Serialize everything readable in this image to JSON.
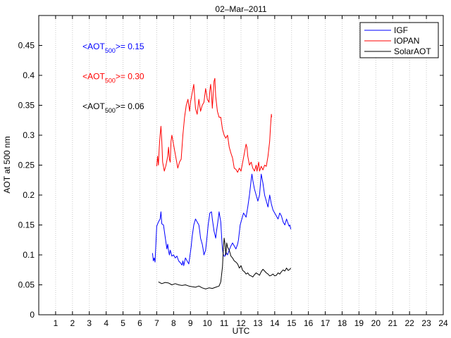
{
  "chart_data": {
    "type": "line",
    "title": "02–Mar–2011",
    "xlabel": "UTC",
    "ylabel": "AOT at 500 nm",
    "xlim": [
      0,
      24
    ],
    "ylim": [
      0,
      0.5
    ],
    "xticks": [
      1,
      2,
      3,
      4,
      5,
      6,
      7,
      8,
      9,
      10,
      11,
      12,
      13,
      14,
      15,
      16,
      17,
      18,
      19,
      20,
      21,
      22,
      23,
      24
    ],
    "yticks": [
      0,
      0.05,
      0.1,
      0.15,
      0.2,
      0.25,
      0.3,
      0.35,
      0.4,
      0.45
    ],
    "ytick_labels": [
      "0",
      "0.05",
      "0.1",
      "0.15",
      "0.2",
      "0.25",
      "0.3",
      "0.35",
      "0.4",
      "0.45"
    ],
    "grid": "x-only dotted",
    "legend_position": "top-right",
    "annotations": [
      {
        "prefix": "<AOT",
        "sub": "500",
        "suffix": ">= 0.15",
        "color": "#0000ff",
        "x": 2.6,
        "y": 0.448
      },
      {
        "prefix": "<AOT",
        "sub": "500",
        "suffix": ">= 0.30",
        "color": "#ff0000",
        "x": 2.6,
        "y": 0.398
      },
      {
        "prefix": "<AOT",
        "sub": "500",
        "suffix": ">= 0.06",
        "color": "#000000",
        "x": 2.6,
        "y": 0.348
      }
    ],
    "series": [
      {
        "name": "IGF",
        "color": "#0000ff",
        "points": [
          [
            6.75,
            0.103
          ],
          [
            6.8,
            0.09
          ],
          [
            6.85,
            0.095
          ],
          [
            6.9,
            0.088
          ],
          [
            7.0,
            0.148
          ],
          [
            7.1,
            0.155
          ],
          [
            7.2,
            0.16
          ],
          [
            7.25,
            0.172
          ],
          [
            7.3,
            0.152
          ],
          [
            7.4,
            0.15
          ],
          [
            7.45,
            0.14
          ],
          [
            7.5,
            0.13
          ],
          [
            7.55,
            0.12
          ],
          [
            7.6,
            0.11
          ],
          [
            7.65,
            0.118
          ],
          [
            7.7,
            0.107
          ],
          [
            7.75,
            0.1
          ],
          [
            7.8,
            0.108
          ],
          [
            7.9,
            0.098
          ],
          [
            8.0,
            0.1
          ],
          [
            8.1,
            0.095
          ],
          [
            8.2,
            0.098
          ],
          [
            8.3,
            0.09
          ],
          [
            8.4,
            0.087
          ],
          [
            8.5,
            0.083
          ],
          [
            8.55,
            0.09
          ],
          [
            8.6,
            0.082
          ],
          [
            8.7,
            0.095
          ],
          [
            8.8,
            0.09
          ],
          [
            8.9,
            0.085
          ],
          [
            8.95,
            0.095
          ],
          [
            9.05,
            0.115
          ],
          [
            9.1,
            0.13
          ],
          [
            9.15,
            0.14
          ],
          [
            9.2,
            0.15
          ],
          [
            9.3,
            0.16
          ],
          [
            9.4,
            0.155
          ],
          [
            9.5,
            0.15
          ],
          [
            9.55,
            0.14
          ],
          [
            9.6,
            0.128
          ],
          [
            9.7,
            0.118
          ],
          [
            9.75,
            0.11
          ],
          [
            9.8,
            0.1
          ],
          [
            9.9,
            0.108
          ],
          [
            10.0,
            0.135
          ],
          [
            10.05,
            0.15
          ],
          [
            10.15,
            0.17
          ],
          [
            10.25,
            0.172
          ],
          [
            10.3,
            0.16
          ],
          [
            10.4,
            0.14
          ],
          [
            10.5,
            0.128
          ],
          [
            10.55,
            0.14
          ],
          [
            10.65,
            0.16
          ],
          [
            10.7,
            0.172
          ],
          [
            10.8,
            0.155
          ],
          [
            10.85,
            0.13
          ],
          [
            10.9,
            0.11
          ],
          [
            10.95,
            0.1
          ],
          [
            11.0,
            0.098
          ],
          [
            11.05,
            0.098
          ],
          [
            11.1,
            0.105
          ],
          [
            11.2,
            0.1
          ],
          [
            11.3,
            0.108
          ],
          [
            11.4,
            0.115
          ],
          [
            11.5,
            0.12
          ],
          [
            11.6,
            0.115
          ],
          [
            11.7,
            0.11
          ],
          [
            11.8,
            0.118
          ],
          [
            11.85,
            0.125
          ],
          [
            11.95,
            0.15
          ],
          [
            12.05,
            0.16
          ],
          [
            12.15,
            0.17
          ],
          [
            12.3,
            0.163
          ],
          [
            12.4,
            0.18
          ],
          [
            12.5,
            0.2
          ],
          [
            12.6,
            0.225
          ],
          [
            12.65,
            0.235
          ],
          [
            12.7,
            0.225
          ],
          [
            12.8,
            0.21
          ],
          [
            12.9,
            0.2
          ],
          [
            13.0,
            0.19
          ],
          [
            13.1,
            0.2
          ],
          [
            13.2,
            0.235
          ],
          [
            13.3,
            0.22
          ],
          [
            13.4,
            0.2
          ],
          [
            13.5,
            0.19
          ],
          [
            13.6,
            0.18
          ],
          [
            13.7,
            0.2
          ],
          [
            13.8,
            0.185
          ],
          [
            13.9,
            0.175
          ],
          [
            14.0,
            0.17
          ],
          [
            14.1,
            0.165
          ],
          [
            14.2,
            0.16
          ],
          [
            14.3,
            0.17
          ],
          [
            14.4,
            0.165
          ],
          [
            14.5,
            0.155
          ],
          [
            14.6,
            0.15
          ],
          [
            14.7,
            0.16
          ],
          [
            14.8,
            0.152
          ],
          [
            14.85,
            0.148
          ],
          [
            14.9,
            0.15
          ],
          [
            14.95,
            0.143
          ]
        ]
      },
      {
        "name": "IOPAN",
        "color": "#ff0000",
        "points": [
          [
            7.0,
            0.248
          ],
          [
            7.05,
            0.265
          ],
          [
            7.1,
            0.25
          ],
          [
            7.15,
            0.28
          ],
          [
            7.2,
            0.3
          ],
          [
            7.25,
            0.315
          ],
          [
            7.3,
            0.29
          ],
          [
            7.35,
            0.255
          ],
          [
            7.45,
            0.24
          ],
          [
            7.55,
            0.25
          ],
          [
            7.65,
            0.265
          ],
          [
            7.7,
            0.28
          ],
          [
            7.75,
            0.26
          ],
          [
            7.8,
            0.255
          ],
          [
            7.85,
            0.29
          ],
          [
            7.9,
            0.3
          ],
          [
            8.25,
            0.245
          ],
          [
            8.3,
            0.25
          ],
          [
            8.35,
            0.255
          ],
          [
            8.45,
            0.26
          ],
          [
            8.5,
            0.28
          ],
          [
            8.55,
            0.3
          ],
          [
            8.65,
            0.33
          ],
          [
            8.75,
            0.35
          ],
          [
            8.85,
            0.36
          ],
          [
            8.95,
            0.34
          ],
          [
            9.0,
            0.355
          ],
          [
            9.1,
            0.37
          ],
          [
            9.2,
            0.385
          ],
          [
            9.3,
            0.345
          ],
          [
            9.4,
            0.335
          ],
          [
            9.5,
            0.36
          ],
          [
            9.6,
            0.34
          ],
          [
            9.7,
            0.35
          ],
          [
            9.8,
            0.355
          ],
          [
            9.9,
            0.378
          ],
          [
            10.0,
            0.36
          ],
          [
            10.1,
            0.355
          ],
          [
            10.15,
            0.375
          ],
          [
            10.2,
            0.385
          ],
          [
            10.25,
            0.37
          ],
          [
            10.3,
            0.345
          ],
          [
            10.4,
            0.39
          ],
          [
            10.45,
            0.395
          ],
          [
            10.5,
            0.365
          ],
          [
            10.6,
            0.34
          ],
          [
            10.7,
            0.33
          ],
          [
            10.8,
            0.33
          ],
          [
            10.9,
            0.31
          ],
          [
            11.0,
            0.3
          ],
          [
            11.1,
            0.295
          ],
          [
            11.2,
            0.3
          ],
          [
            11.3,
            0.28
          ],
          [
            11.4,
            0.27
          ],
          [
            11.5,
            0.262
          ],
          [
            11.6,
            0.245
          ],
          [
            11.7,
            0.243
          ],
          [
            11.8,
            0.238
          ],
          [
            11.9,
            0.245
          ],
          [
            12.0,
            0.24
          ],
          [
            12.1,
            0.255
          ],
          [
            12.2,
            0.27
          ],
          [
            12.3,
            0.285
          ],
          [
            12.35,
            0.28
          ],
          [
            12.4,
            0.265
          ],
          [
            12.5,
            0.25
          ],
          [
            12.6,
            0.255
          ],
          [
            12.7,
            0.245
          ],
          [
            12.8,
            0.24
          ],
          [
            12.9,
            0.25
          ],
          [
            12.95,
            0.24
          ],
          [
            13.0,
            0.248
          ],
          [
            13.05,
            0.255
          ],
          [
            13.1,
            0.24
          ],
          [
            13.2,
            0.248
          ],
          [
            13.3,
            0.242
          ],
          [
            13.4,
            0.25
          ],
          [
            13.5,
            0.248
          ],
          [
            13.6,
            0.265
          ],
          [
            13.7,
            0.29
          ],
          [
            13.75,
            0.315
          ],
          [
            13.8,
            0.335
          ],
          [
            13.82,
            0.33
          ]
        ]
      },
      {
        "name": "SolarAOT",
        "color": "#000000",
        "points": [
          [
            7.1,
            0.055
          ],
          [
            7.3,
            0.052
          ],
          [
            7.5,
            0.054
          ],
          [
            7.7,
            0.053
          ],
          [
            7.9,
            0.05
          ],
          [
            8.1,
            0.052
          ],
          [
            8.3,
            0.05
          ],
          [
            8.5,
            0.049
          ],
          [
            8.7,
            0.05
          ],
          [
            8.9,
            0.048
          ],
          [
            9.1,
            0.047
          ],
          [
            9.3,
            0.046
          ],
          [
            9.5,
            0.048
          ],
          [
            9.7,
            0.045
          ],
          [
            9.9,
            0.043
          ],
          [
            10.1,
            0.045
          ],
          [
            10.3,
            0.044
          ],
          [
            10.5,
            0.046
          ],
          [
            10.7,
            0.048
          ],
          [
            10.8,
            0.055
          ],
          [
            10.9,
            0.08
          ],
          [
            10.95,
            0.11
          ],
          [
            11.0,
            0.128
          ],
          [
            11.05,
            0.118
          ],
          [
            11.1,
            0.1
          ],
          [
            11.15,
            0.12
          ],
          [
            11.2,
            0.113
          ],
          [
            11.3,
            0.108
          ],
          [
            11.4,
            0.098
          ],
          [
            11.5,
            0.095
          ],
          [
            11.6,
            0.09
          ],
          [
            11.7,
            0.088
          ],
          [
            11.8,
            0.085
          ],
          [
            11.9,
            0.078
          ],
          [
            12.0,
            0.082
          ],
          [
            12.1,
            0.074
          ],
          [
            12.2,
            0.072
          ],
          [
            12.3,
            0.068
          ],
          [
            12.4,
            0.07
          ],
          [
            12.5,
            0.066
          ],
          [
            12.6,
            0.065
          ],
          [
            12.7,
            0.063
          ],
          [
            12.8,
            0.067
          ],
          [
            12.9,
            0.07
          ],
          [
            13.0,
            0.068
          ],
          [
            13.1,
            0.066
          ],
          [
            13.2,
            0.072
          ],
          [
            13.3,
            0.076
          ],
          [
            13.4,
            0.073
          ],
          [
            13.5,
            0.07
          ],
          [
            13.6,
            0.068
          ],
          [
            13.7,
            0.065
          ],
          [
            13.8,
            0.066
          ],
          [
            13.9,
            0.068
          ],
          [
            14.0,
            0.065
          ],
          [
            14.1,
            0.066
          ],
          [
            14.2,
            0.07
          ],
          [
            14.3,
            0.068
          ],
          [
            14.4,
            0.072
          ],
          [
            14.5,
            0.075
          ],
          [
            14.6,
            0.073
          ],
          [
            14.7,
            0.078
          ],
          [
            14.8,
            0.074
          ],
          [
            14.9,
            0.076
          ],
          [
            14.95,
            0.078
          ]
        ]
      }
    ]
  }
}
